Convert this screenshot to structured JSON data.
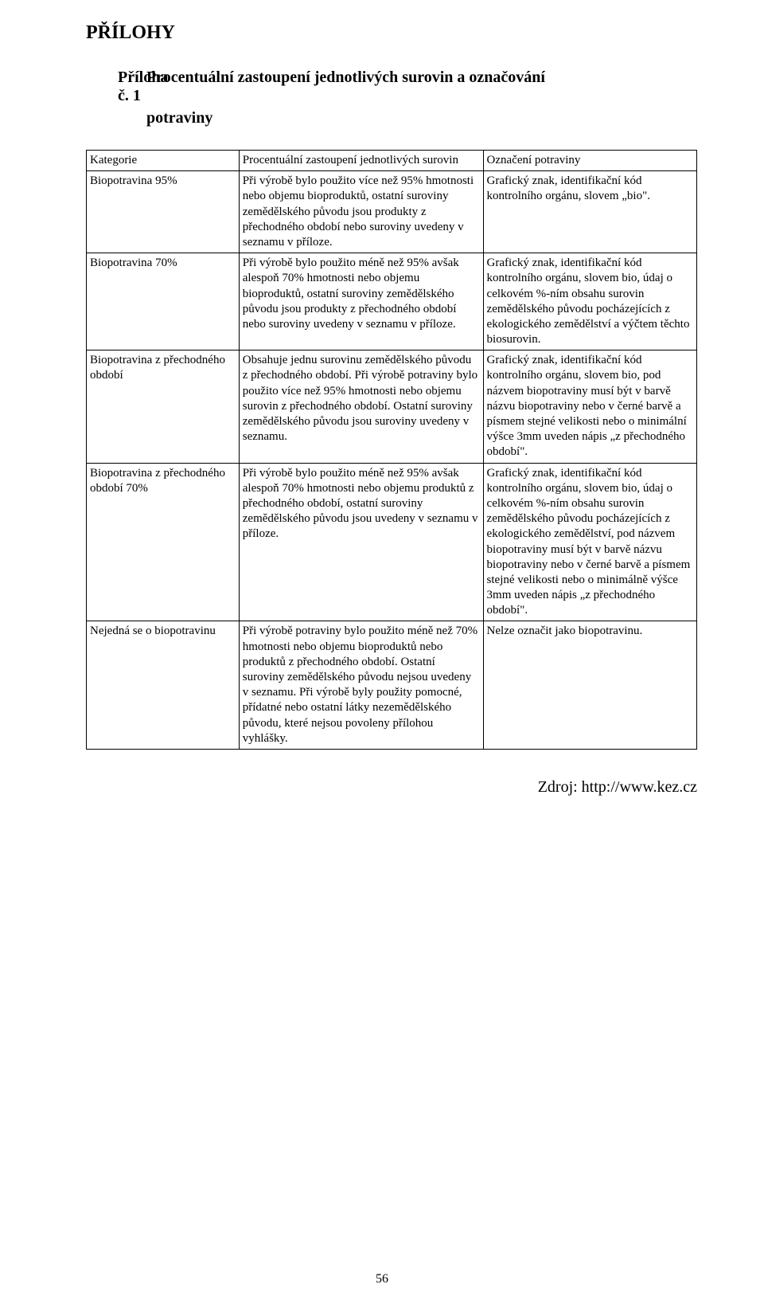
{
  "title": "PŘÍLOHY",
  "attachment_number": "Příloha č. 1",
  "attachment_title_line1": "Procentuální zastoupení jednotlivých surovin a označování",
  "attachment_title_line2": "potraviny",
  "table": {
    "headers": {
      "col1": "Kategorie",
      "col2": "Procentuální zastoupení jednotlivých surovin",
      "col3": "Označení potraviny"
    },
    "rows": [
      {
        "col1": "Biopotravina 95%",
        "col2": "Při výrobě bylo použito více než 95% hmotnosti nebo objemu bioproduktů, ostatní suroviny zemědělského původu jsou produkty z přechodného období nebo suroviny uvedeny v seznamu v příloze.",
        "col3": "Grafický znak, identifikační kód kontrolního orgánu, slovem „bio\"."
      },
      {
        "col1": "Biopotravina 70%",
        "col2": "Při výrobě bylo použito méně než 95% avšak alespoň 70% hmotnosti nebo objemu bioproduktů, ostatní suroviny zemědělského původu jsou produkty z přechodného období nebo suroviny uvedeny v seznamu v příloze.",
        "col3": "Grafický znak, identifikační kód kontrolního orgánu, slovem bio, údaj o celkovém %-ním obsahu surovin zemědělského původu pocházejících z ekologického zemědělství a výčtem těchto biosurovin."
      },
      {
        "col1": "Biopotravina z přechodného období",
        "col2": "Obsahuje jednu surovinu zemědělského původu z přechodného období. Při výrobě potraviny bylo použito více než 95% hmotnosti nebo objemu surovin z přechodného období. Ostatní suroviny zemědělského původu jsou suroviny uvedeny v seznamu.",
        "col3": "Grafický znak, identifikační kód kontrolního orgánu, slovem bio, pod názvem biopotraviny musí být v barvě názvu biopotraviny nebo v černé barvě a písmem stejné velikosti nebo o minimální výšce 3mm uveden nápis „z přechodného období\"."
      },
      {
        "col1": "Biopotravina z přechodného období 70%",
        "col2": "Při výrobě bylo použito méně než 95% avšak alespoň 70% hmotnosti nebo objemu produktů z přechodného období, ostatní suroviny zemědělského původu jsou uvedeny v seznamu v příloze.",
        "col3": "Grafický znak, identifikační kód kontrolního orgánu, slovem bio, údaj o celkovém %-ním obsahu surovin zemědělského původu pocházejících z ekologického zemědělství, pod názvem biopotraviny musí být v barvě názvu biopotraviny nebo v černé barvě a písmem stejné velikosti nebo o minimálně výšce 3mm uveden nápis „z přechodného období\"."
      },
      {
        "col1": "Nejedná se o biopotravinu",
        "col2": "Při výrobě potraviny bylo použito méně než 70% hmotnosti nebo objemu bioproduktů nebo produktů z přechodného období. Ostatní suroviny zemědělského původu nejsou uvedeny v seznamu. Při výrobě byly použity pomocné, přídatné nebo ostatní látky nezemědělského původu, které nejsou povoleny přílohou vyhlášky.",
        "col3": "Nelze označit jako biopotravinu."
      }
    ]
  },
  "source": "Zdroj: http://www.kez.cz",
  "page_number": "56"
}
